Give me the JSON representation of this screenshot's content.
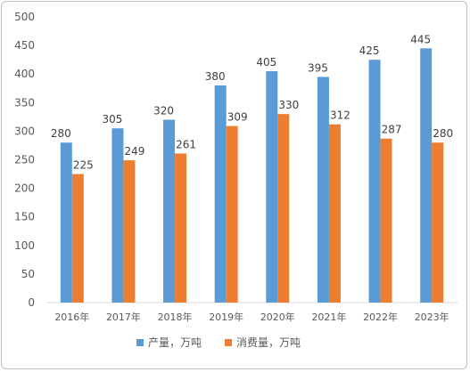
{
  "chart_data": {
    "type": "bar",
    "categories": [
      "2016年",
      "2017年",
      "2018年",
      "2019年",
      "2020年",
      "2021年",
      "2022年",
      "2023年"
    ],
    "series": [
      {
        "name": "产量，万吨",
        "values": [
          280,
          305,
          320,
          380,
          405,
          395,
          425,
          445
        ],
        "color": "#5b9bd5"
      },
      {
        "name": "消费量，万吨",
        "values": [
          225,
          249,
          261,
          309,
          330,
          312,
          287,
          280
        ],
        "color": "#ed7d31"
      }
    ],
    "ylim": [
      0,
      500
    ],
    "yticks": [
      0,
      50,
      100,
      150,
      200,
      250,
      300,
      350,
      400,
      450,
      500
    ],
    "grid": false,
    "legend_position": "bottom",
    "data_labels": true
  }
}
